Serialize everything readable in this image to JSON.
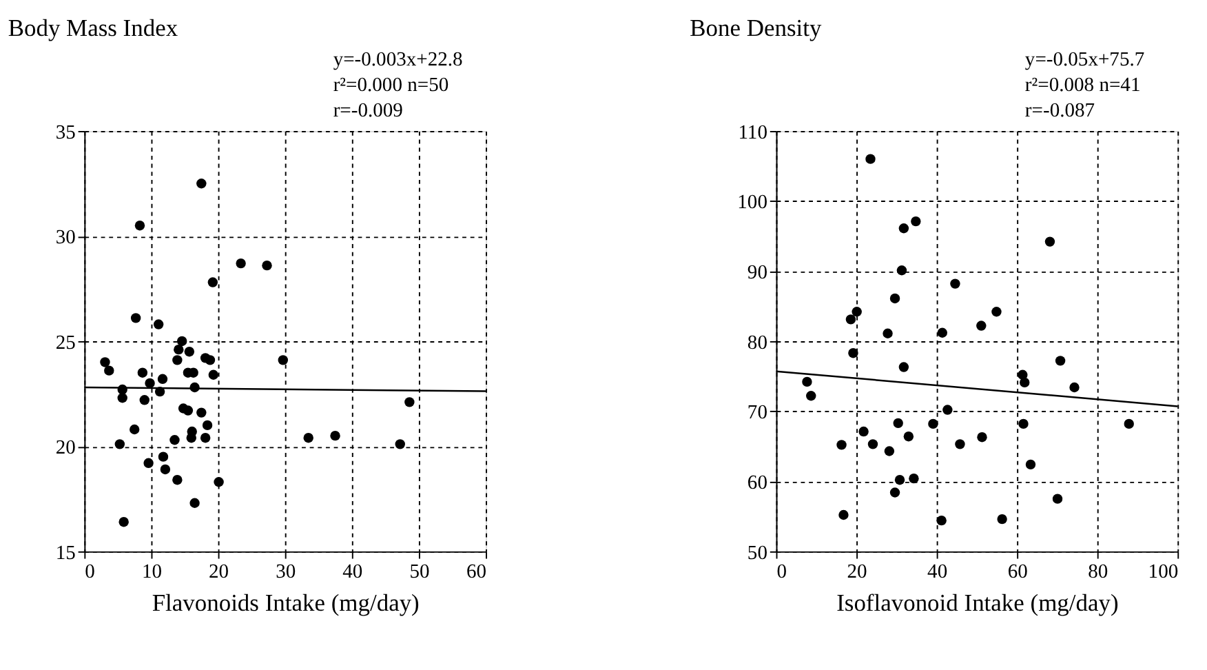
{
  "chart_data": [
    {
      "type": "scatter",
      "title": "Body Mass Index",
      "xlabel": "Flavonoids Intake (mg/day)",
      "annotations": [
        "y=-0.003x+22.8",
        "r²=0.000  n=50",
        "r=-0.009"
      ],
      "xlim": [
        0,
        60
      ],
      "ylim": [
        15,
        35
      ],
      "xticks": [
        0,
        10,
        20,
        30,
        40,
        50,
        60
      ],
      "yticks": [
        15,
        20,
        25,
        30,
        35
      ],
      "grid": true,
      "series": [
        {
          "color": "#000000",
          "marker": "circle",
          "x": [
            17.5,
            8.3,
            23.4,
            27.3,
            19.2,
            7.7,
            11.1,
            14.6,
            14.1,
            15.7,
            13.9,
            18.1,
            18.8,
            29.7,
            3.1,
            3.7,
            8.7,
            15.5,
            16.3,
            19.3,
            11.7,
            9.8,
            5.7,
            11.3,
            16.5,
            5.7,
            9.0,
            48.6,
            14.8,
            15.5,
            17.5,
            18.4,
            7.5,
            16.1,
            16.0,
            18.1,
            13.5,
            33.5,
            37.5,
            5.3,
            47.2,
            11.8,
            9.6,
            12.1,
            13.9,
            20.1,
            16.5,
            5.9
          ],
          "values": [
            32.5,
            30.5,
            28.7,
            28.6,
            27.8,
            26.1,
            25.8,
            25.0,
            24.6,
            24.5,
            24.1,
            24.2,
            24.1,
            24.1,
            24.0,
            23.6,
            23.5,
            23.5,
            23.5,
            23.4,
            23.2,
            23.0,
            22.7,
            22.6,
            22.8,
            22.3,
            22.2,
            22.1,
            21.8,
            21.7,
            21.6,
            21.0,
            20.8,
            20.7,
            20.4,
            20.4,
            20.3,
            20.4,
            20.5,
            20.1,
            20.1,
            19.5,
            19.2,
            18.9,
            18.4,
            18.3,
            17.3,
            16.4
          ]
        },
        {
          "type": "line",
          "color": "#000000",
          "marker": "none",
          "x": [
            0,
            60
          ],
          "values": [
            22.8,
            22.62
          ]
        }
      ]
    },
    {
      "type": "scatter",
      "title": "Bone Density",
      "xlabel": "Isoflavonoid Intake (mg/day)",
      "annotations": [
        "y=-0.05x+75.7",
        "r²=0.008  n=41",
        "r=-0.087"
      ],
      "xlim": [
        0,
        100
      ],
      "ylim": [
        50,
        110
      ],
      "xticks": [
        0,
        20,
        40,
        60,
        80,
        100
      ],
      "yticks": [
        50,
        60,
        70,
        80,
        90,
        100,
        110
      ],
      "grid": true,
      "series": [
        {
          "color": "#000000",
          "marker": "circle",
          "x": [
            23.5,
            68.2,
            34.8,
            31.8,
            31.3,
            44.6,
            29.6,
            20.1,
            18.6,
            54.9,
            51.1,
            27.8,
            41.4,
            19.2,
            31.8,
            70.8,
            61.4,
            61.9,
            74.3,
            7.7,
            8.7,
            42.7,
            30.4,
            39.1,
            61.6,
            87.9,
            21.8,
            33.0,
            51.3,
            16.3,
            24.1,
            45.8,
            28.2,
            63.4,
            30.8,
            34.3,
            29.6,
            70.1,
            16.8,
            41.2,
            56.3
          ],
          "values": [
            106,
            94.2,
            97.1,
            96.1,
            90.1,
            88.2,
            86.1,
            84.2,
            83.1,
            84.2,
            82.2,
            81.1,
            81.2,
            78.3,
            76.3,
            77.2,
            75.2,
            74.1,
            73.4,
            74.2,
            72.2,
            70.2,
            68.3,
            68.2,
            68.2,
            68.2,
            67.1,
            66.4,
            66.3,
            65.2,
            65.3,
            65.3,
            64.3,
            62.4,
            60.2,
            60.4,
            58.4,
            57.5,
            55.2,
            54.4,
            54.6
          ]
        },
        {
          "type": "line",
          "color": "#000000",
          "marker": "none",
          "x": [
            0,
            100
          ],
          "values": [
            75.7,
            70.7
          ]
        }
      ]
    }
  ]
}
